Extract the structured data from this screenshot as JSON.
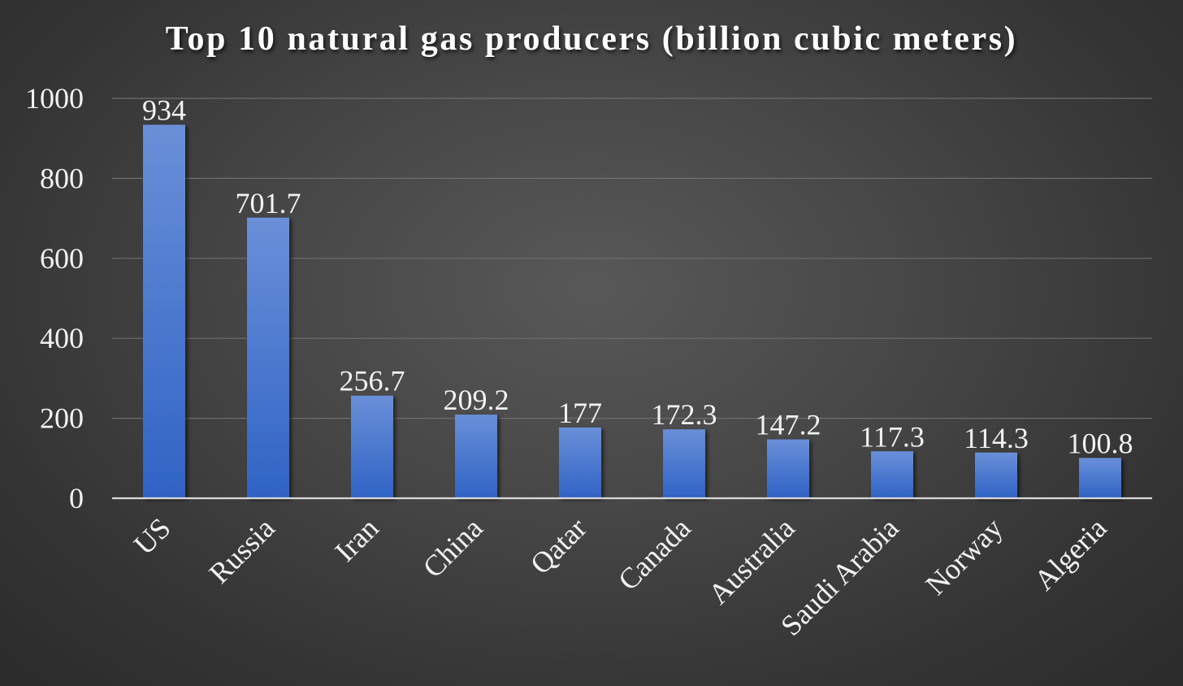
{
  "chart_data": {
    "type": "bar",
    "title": "Top 10 natural gas producers (billion cubic meters)",
    "xlabel": "",
    "ylabel": "",
    "categories": [
      "US",
      "Russia",
      "Iran",
      "China",
      "Qatar",
      "Canada",
      "Australia",
      "Saudi Arabia",
      "Norway",
      "Algeria"
    ],
    "values": [
      934,
      701.7,
      256.7,
      209.2,
      177,
      172.3,
      147.2,
      117.3,
      114.3,
      100.8
    ],
    "data_labels": [
      "934",
      "701.7",
      "256.7",
      "209.2",
      "177",
      "172.3",
      "147.2",
      "117.3",
      "114.3",
      "100.8"
    ],
    "ylim": [
      0,
      1000
    ],
    "yticks": [
      0,
      200,
      400,
      600,
      800,
      1000
    ],
    "grid": true,
    "legend": "none",
    "colors": {
      "bar_top": "#6a8fd8",
      "bar_bottom": "#2f63c5",
      "text": "#f2f2f2",
      "gridline": "#6e6e6e",
      "axis": "#d9d9d9"
    }
  }
}
